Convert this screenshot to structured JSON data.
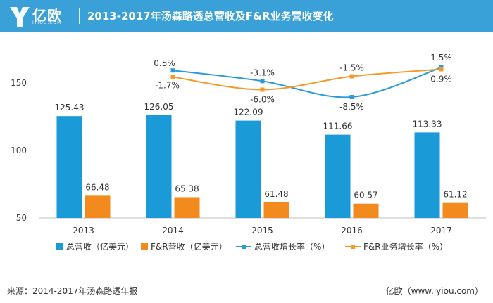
{
  "header": {
    "logo_text": "亿欧",
    "logo_sub": "IYIOU.COM",
    "title": "2013-2017年汤森路透总营收及F&R业务营收变化"
  },
  "colors": {
    "header_bg": "#3aa0d8",
    "series_total_revenue": "#1a9ad6",
    "series_fr_revenue": "#f28a1e",
    "series_total_growth": "#2b9bd7",
    "series_fr_growth": "#f39a2b"
  },
  "chart_data": {
    "type": "bar",
    "categories": [
      "2013",
      "2014",
      "2015",
      "2016",
      "2017"
    ],
    "y_ticks": [
      "50",
      "100",
      "150"
    ],
    "ylim": [
      50,
      150
    ],
    "series": [
      {
        "name": "总营收（亿美元）",
        "type": "bar",
        "values": [
          125.43,
          126.05,
          122.09,
          111.66,
          113.33
        ],
        "labels": [
          "125.43",
          "126.05",
          "122.09",
          "111.66",
          "113.33"
        ]
      },
      {
        "name": "F&R营收（亿美元）",
        "type": "bar",
        "values": [
          66.48,
          65.38,
          61.48,
          60.57,
          61.12
        ],
        "labels": [
          "66.48",
          "65.38",
          "61.48",
          "60.57",
          "61.12"
        ]
      },
      {
        "name": "总营收增长率（%）",
        "type": "line",
        "secondary_axis": true,
        "x": [
          "2014",
          "2015",
          "2016",
          "2017"
        ],
        "values": [
          0.5,
          -3.1,
          -8.5,
          1.5
        ],
        "labels": [
          "0.5%",
          "-3.1%",
          "-8.5%",
          "1.5%"
        ]
      },
      {
        "name": "F&R业务增长率（%）",
        "type": "line",
        "secondary_axis": true,
        "x": [
          "2014",
          "2015",
          "2016",
          "2017"
        ],
        "values": [
          -1.7,
          -6.0,
          -1.5,
          0.9
        ],
        "labels": [
          "-1.7%",
          "-6.0%",
          "-1.5%",
          "0.9%"
        ]
      }
    ],
    "grid": false,
    "legend": "bottom"
  },
  "footer": {
    "source": "来源：2014-2017年汤森路透年报",
    "brand": "亿欧（www.iyiou.com）"
  }
}
